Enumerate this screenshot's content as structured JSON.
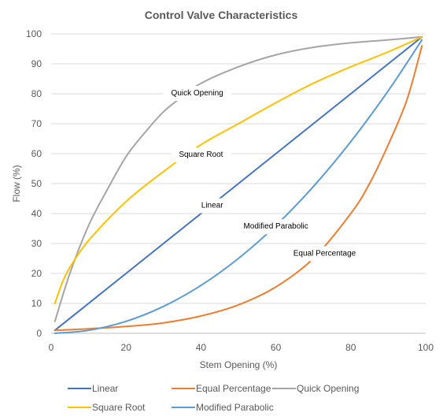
{
  "chart_data": {
    "type": "line",
    "title": "Control Valve Characteristics",
    "xlabel": "Stem Opening  (%)",
    "ylabel": "Flow (%)",
    "xlim": [
      0,
      100
    ],
    "ylim": [
      0,
      100
    ],
    "x_ticks": [
      0,
      20,
      40,
      60,
      80,
      100
    ],
    "y_ticks": [
      0,
      10,
      20,
      30,
      40,
      50,
      60,
      70,
      80,
      90,
      100
    ],
    "grid": "horizontal",
    "legend_position": "bottom",
    "series": [
      {
        "name": "Linear",
        "color": "#4472c4",
        "points": [
          [
            1,
            1
          ],
          [
            10,
            10
          ],
          [
            20,
            20
          ],
          [
            30,
            30
          ],
          [
            40,
            40
          ],
          [
            50,
            50
          ],
          [
            60,
            60
          ],
          [
            70,
            70
          ],
          [
            80,
            80
          ],
          [
            90,
            90
          ],
          [
            99,
            99
          ]
        ]
      },
      {
        "name": "Equal Percentage",
        "color": "#ed7d31",
        "points": [
          [
            1,
            1
          ],
          [
            10,
            1.5
          ],
          [
            20,
            2.3
          ],
          [
            30,
            3.5
          ],
          [
            40,
            5.8
          ],
          [
            50,
            9.5
          ],
          [
            60,
            15.5
          ],
          [
            70,
            25
          ],
          [
            80,
            40
          ],
          [
            85,
            50
          ],
          [
            90,
            63
          ],
          [
            95,
            78
          ],
          [
            99,
            96
          ]
        ]
      },
      {
        "name": "Quick Opening",
        "color": "#a5a5a5",
        "points": [
          [
            1,
            4
          ],
          [
            5,
            20
          ],
          [
            10,
            36
          ],
          [
            15,
            48
          ],
          [
            20,
            59
          ],
          [
            25,
            67
          ],
          [
            30,
            74
          ],
          [
            35,
            79
          ],
          [
            40,
            83.5
          ],
          [
            50,
            89
          ],
          [
            60,
            93
          ],
          [
            70,
            95.5
          ],
          [
            80,
            97
          ],
          [
            90,
            98
          ],
          [
            99,
            99
          ]
        ]
      },
      {
        "name": "Square Root",
        "color": "#ffc000",
        "points": [
          [
            1,
            10
          ],
          [
            3,
            17
          ],
          [
            5,
            22
          ],
          [
            10,
            31
          ],
          [
            20,
            44
          ],
          [
            30,
            54
          ],
          [
            40,
            63
          ],
          [
            50,
            70
          ],
          [
            60,
            77
          ],
          [
            70,
            83.5
          ],
          [
            80,
            89
          ],
          [
            90,
            94
          ],
          [
            99,
            99
          ]
        ]
      },
      {
        "name": "Modified Parabolic",
        "color": "#5b9bd5",
        "points": [
          [
            1,
            0.01
          ],
          [
            10,
            1
          ],
          [
            20,
            4
          ],
          [
            30,
            9
          ],
          [
            40,
            16
          ],
          [
            50,
            25
          ],
          [
            60,
            36
          ],
          [
            70,
            49
          ],
          [
            80,
            64
          ],
          [
            90,
            81
          ],
          [
            99,
            98
          ]
        ]
      }
    ],
    "annotations": [
      {
        "text": "Quick Opening",
        "x": 39,
        "y": 80.5
      },
      {
        "text": "Square Root",
        "x": 40,
        "y": 60
      },
      {
        "text": "Linear",
        "x": 43,
        "y": 43
      },
      {
        "text": "Modified Parabolic",
        "x": 60,
        "y": 36
      },
      {
        "text": "Equal Percentage",
        "x": 73,
        "y": 27
      }
    ],
    "legend_order": [
      "Linear",
      "Equal Percentage",
      "Quick Opening",
      "Square Root",
      "Modified Parabolic"
    ]
  }
}
